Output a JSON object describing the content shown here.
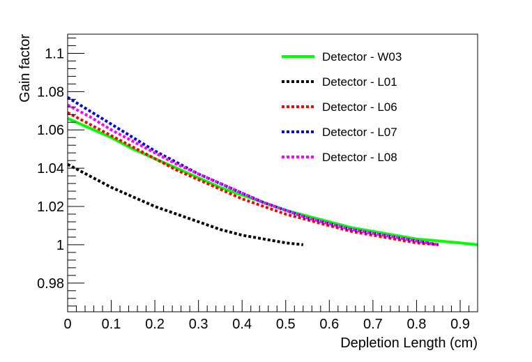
{
  "chart_data": {
    "type": "line",
    "title": "",
    "xlabel": "Depletion Length (cm)",
    "ylabel": "Gain factor",
    "xlim": [
      0,
      0.94
    ],
    "ylim": [
      0.965,
      1.11
    ],
    "x_ticks": [
      0,
      0.1,
      0.2,
      0.3,
      0.4,
      0.5,
      0.6,
      0.7,
      0.8,
      0.9
    ],
    "x_tick_labels": [
      "0",
      "0.1",
      "0.2",
      "0.3",
      "0.4",
      "0.5",
      "0.6",
      "0.7",
      "0.8",
      "0.9"
    ],
    "y_ticks": [
      0.98,
      1.0,
      1.02,
      1.04,
      1.06,
      1.08,
      1.1
    ],
    "y_tick_labels": [
      "0.98",
      "1",
      "1.02",
      "1.04",
      "1.06",
      "1.08",
      "1.1"
    ],
    "grid": false,
    "legend_position": "top-right",
    "series": [
      {
        "name": "Detector - W03",
        "color": "#00ff00",
        "style": "solid",
        "x": [
          0,
          0.05,
          0.1,
          0.15,
          0.2,
          0.25,
          0.3,
          0.35,
          0.4,
          0.45,
          0.5,
          0.55,
          0.6,
          0.65,
          0.7,
          0.75,
          0.8,
          0.85,
          0.9,
          0.94
        ],
        "y": [
          1.066,
          1.061,
          1.056,
          1.05,
          1.045,
          1.04,
          1.035,
          1.03,
          1.026,
          1.022,
          1.018,
          1.015,
          1.012,
          1.009,
          1.007,
          1.005,
          1.003,
          1.002,
          1.001,
          1.0
        ]
      },
      {
        "name": "Detector - L01",
        "color": "#000000",
        "style": "dotted",
        "x": [
          0,
          0.05,
          0.1,
          0.15,
          0.2,
          0.25,
          0.3,
          0.35,
          0.4,
          0.45,
          0.5,
          0.54
        ],
        "y": [
          1.042,
          1.036,
          1.03,
          1.025,
          1.02,
          1.016,
          1.012,
          1.008,
          1.005,
          1.003,
          1.001,
          1.0
        ]
      },
      {
        "name": "Detector - L06",
        "color": "#ff0000",
        "style": "dotted",
        "x": [
          0,
          0.05,
          0.1,
          0.15,
          0.2,
          0.25,
          0.3,
          0.35,
          0.4,
          0.45,
          0.5,
          0.55,
          0.6,
          0.65,
          0.7,
          0.75,
          0.8,
          0.85
        ],
        "y": [
          1.069,
          1.063,
          1.057,
          1.051,
          1.045,
          1.039,
          1.034,
          1.029,
          1.024,
          1.02,
          1.016,
          1.013,
          1.01,
          1.007,
          1.005,
          1.003,
          1.001,
          1.0
        ]
      },
      {
        "name": "Detector - L07",
        "color": "#0000ff",
        "style": "dotted",
        "x": [
          0,
          0.05,
          0.1,
          0.15,
          0.2,
          0.25,
          0.3,
          0.35,
          0.4,
          0.45,
          0.5,
          0.55,
          0.6,
          0.65,
          0.7,
          0.75,
          0.8,
          0.85
        ],
        "y": [
          1.077,
          1.07,
          1.063,
          1.056,
          1.049,
          1.043,
          1.037,
          1.032,
          1.027,
          1.022,
          1.018,
          1.014,
          1.011,
          1.008,
          1.006,
          1.004,
          1.002,
          1.0
        ]
      },
      {
        "name": "Detector - L08",
        "color": "#ff00ff",
        "style": "dotted",
        "x": [
          0,
          0.05,
          0.1,
          0.15,
          0.2,
          0.25,
          0.3,
          0.35,
          0.4,
          0.45,
          0.5,
          0.55,
          0.6,
          0.65,
          0.7,
          0.75,
          0.8,
          0.85
        ],
        "y": [
          1.073,
          1.067,
          1.06,
          1.054,
          1.048,
          1.042,
          1.037,
          1.032,
          1.027,
          1.022,
          1.018,
          1.014,
          1.011,
          1.008,
          1.006,
          1.004,
          1.002,
          1.0
        ]
      }
    ]
  }
}
